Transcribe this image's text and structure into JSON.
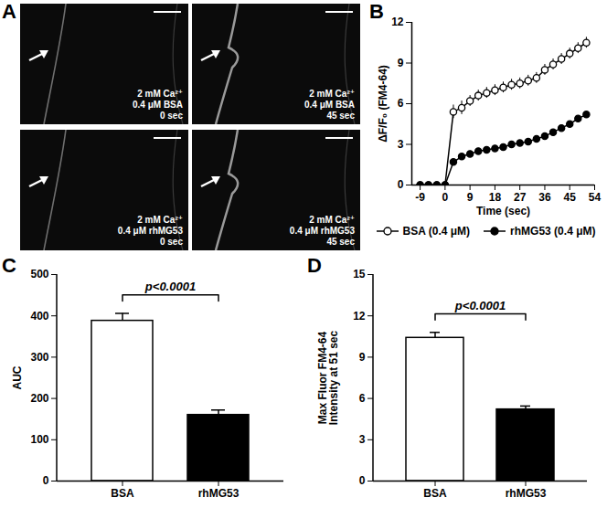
{
  "images": {
    "panel": "A",
    "cells": [
      {
        "lines": [
          "2 mM Ca²⁺",
          "0.4 μM BSA",
          "0 sec"
        ]
      },
      {
        "lines": [
          "2 mM Ca²⁺",
          "0.4 μM BSA",
          "45 sec"
        ]
      },
      {
        "lines": [
          "2 mM Ca²⁺",
          "0.4 μM rhMG53",
          "0 sec"
        ]
      },
      {
        "lines": [
          "2 mM Ca²⁺",
          "0.4 μM rhMG53",
          "45 sec"
        ]
      }
    ]
  },
  "chart_data": [
    {
      "panel": "B",
      "type": "line",
      "x_label": "Time (sec)",
      "y_label": "ΔF/F₀ (FM4-64)",
      "x": [
        -9,
        -6,
        -3,
        0,
        3,
        6,
        9,
        12,
        15,
        18,
        21,
        24,
        27,
        30,
        33,
        36,
        39,
        42,
        45,
        48,
        51
      ],
      "series": [
        {
          "name": "BSA (0.4 μM)",
          "color": "#000000",
          "marker": "open circle",
          "values": [
            0,
            0,
            0,
            0,
            5.4,
            5.7,
            6.2,
            6.6,
            6.8,
            7.0,
            7.2,
            7.4,
            7.5,
            7.7,
            7.9,
            8.5,
            8.9,
            9.3,
            9.7,
            10.1,
            10.5
          ],
          "errors": [
            0,
            0,
            0,
            0,
            0.5,
            0.5,
            0.4,
            0.4,
            0.4,
            0.4,
            0.4,
            0.4,
            0.4,
            0.4,
            0.4,
            0.4,
            0.4,
            0.4,
            0.4,
            0.4,
            0.4
          ]
        },
        {
          "name": "rhMG53 (0.4 μM)",
          "color": "#000000",
          "marker": "filled circle",
          "values": [
            0,
            0,
            0,
            0,
            1.7,
            2.1,
            2.3,
            2.5,
            2.6,
            2.7,
            2.8,
            3.0,
            3.1,
            3.2,
            3.4,
            3.6,
            3.9,
            4.2,
            4.5,
            4.9,
            5.2
          ],
          "errors": [
            0,
            0,
            0,
            0,
            0.2,
            0.2,
            0.2,
            0.2,
            0.2,
            0.2,
            0.2,
            0.2,
            0.2,
            0.2,
            0.2,
            0.2,
            0.2,
            0.2,
            0.2,
            0.2,
            0.2
          ]
        }
      ],
      "xlim": [
        -12,
        54
      ],
      "xticks": [
        -9,
        0,
        9,
        18,
        27,
        36,
        45,
        54
      ],
      "ylim": [
        0,
        12
      ],
      "yticks": [
        0,
        3,
        6,
        9,
        12
      ],
      "legend": "bottom"
    },
    {
      "panel": "C",
      "type": "bar",
      "y_label": "AUC",
      "categories": [
        "BSA",
        "rhMG53"
      ],
      "values": [
        388,
        160
      ],
      "errors": [
        18,
        12
      ],
      "colors": [
        "#ffffff",
        "#000000"
      ],
      "ylim": [
        0,
        500
      ],
      "yticks": [
        0,
        100,
        200,
        300,
        400,
        500
      ],
      "annotations": [
        "p<0.0001"
      ]
    },
    {
      "panel": "D",
      "type": "bar",
      "y_label": "Max Fluor FM4-64\nIntensity at 51 sec",
      "categories": [
        "BSA",
        "rhMG53"
      ],
      "values": [
        10.4,
        5.2
      ],
      "errors": [
        0.4,
        0.25
      ],
      "colors": [
        "#ffffff",
        "#000000"
      ],
      "ylim": [
        0,
        15
      ],
      "yticks": [
        0,
        3,
        6,
        9,
        12,
        15
      ],
      "annotations": [
        "p<0.0001"
      ]
    }
  ]
}
